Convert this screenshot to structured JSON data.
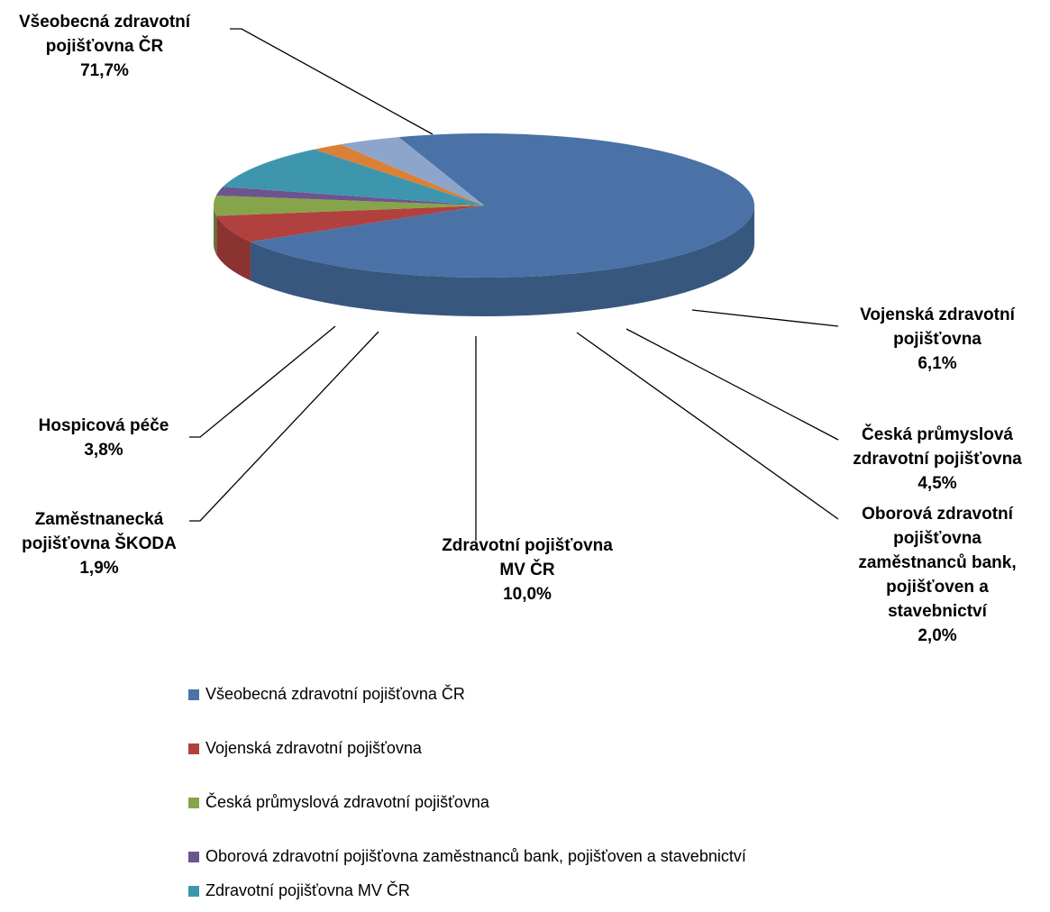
{
  "chart_data": {
    "type": "pie",
    "title": "",
    "slices": [
      {
        "label": "Všeobecná zdravotní pojišťovna ČR",
        "value": 71.7,
        "value_label": "71,7%",
        "color": "#4A72A6"
      },
      {
        "label": "Vojenská zdravotní pojišťovna",
        "value": 6.1,
        "value_label": "6,1%",
        "color": "#B1413F"
      },
      {
        "label": "Česká průmyslová zdravotní pojišťovna",
        "value": 4.5,
        "value_label": "4,5%",
        "color": "#86A44A"
      },
      {
        "label": "Oborová zdravotní pojišťovna zaměstnanců bank, pojišťoven a stavebnictví",
        "value": 2.0,
        "value_label": "2,0%",
        "color": "#6E548D"
      },
      {
        "label": "Zdravotní pojišťovna MV ČR",
        "value": 10.0,
        "value_label": "10,0%",
        "color": "#3D96AE"
      },
      {
        "label": "Zaměstnanecká pojišťovna ŠKODA",
        "value": 1.9,
        "value_label": "1,9%",
        "color": "#DA8137"
      },
      {
        "label": "Hospicová péče",
        "value": 3.8,
        "value_label": "3,8%",
        "color": "#8EA5CB"
      }
    ],
    "data_labels": [
      {
        "lines": [
          "Všeobecná zdravotní",
          "pojišťovna ČR",
          "71,7%"
        ]
      },
      {
        "lines": [
          "Vojenská zdravotní",
          "pojišťovna",
          "6,1%"
        ]
      },
      {
        "lines": [
          "Česká průmyslová",
          "zdravotní pojišťovna",
          "4,5%"
        ]
      },
      {
        "lines": [
          "Oborová zdravotní",
          "pojišťovna",
          "zaměstnanců bank,",
          "pojišťoven a",
          "stavebnictví",
          "2,0%"
        ]
      },
      {
        "lines": [
          "Zdravotní pojišťovna",
          "MV ČR",
          "10,0%"
        ]
      },
      {
        "lines": [
          "Zaměstnanecká",
          "pojišťovna ŠKODA",
          "1,9%"
        ]
      },
      {
        "lines": [
          "Hospicová péče",
          "3,8%"
        ]
      }
    ],
    "legend": {
      "placement": "bottom",
      "items": [
        {
          "label": "Všeobecná zdravotní pojišťovna ČR",
          "color": "#4A72A6"
        },
        {
          "label": "Vojenská zdravotní pojišťovna",
          "color": "#B1413F"
        },
        {
          "label": "Česká průmyslová zdravotní pojišťovna",
          "color": "#86A44A"
        },
        {
          "label": "Oborová zdravotní pojišťovna zaměstnanců bank, pojišťoven a stavebnictví",
          "color": "#6E548D"
        },
        {
          "label": "Zdravotní pojišťovna MV ČR",
          "color": "#3D96AE"
        }
      ]
    }
  }
}
